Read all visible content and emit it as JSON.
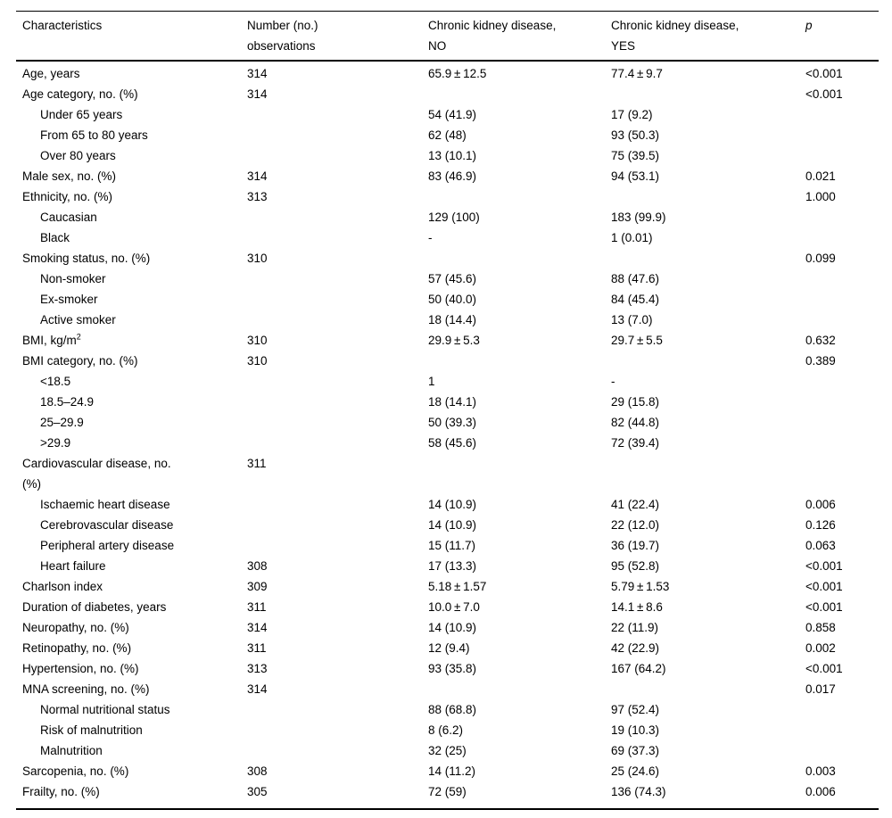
{
  "page": {
    "background_color": "#ffffff",
    "text_color": "#000000",
    "rule_color": "#000000"
  },
  "table": {
    "header": [
      {
        "id": "characteristics",
        "lines": [
          "Characteristics"
        ],
        "italic": false
      },
      {
        "id": "observations",
        "lines": [
          "Number (no.)",
          "observations"
        ],
        "italic": false
      },
      {
        "id": "ckd-no",
        "lines": [
          "Chronic kidney disease,",
          "NO"
        ],
        "italic": false
      },
      {
        "id": "ckd-yes",
        "lines": [
          "Chronic kidney disease,",
          "YES"
        ],
        "italic": false
      },
      {
        "id": "p-value",
        "lines": [
          "p"
        ],
        "italic": true
      }
    ],
    "rows": [
      {
        "label": "Age, years",
        "indent": false,
        "obs": "314",
        "ckd_no": "65.9 ± 12.5",
        "ckd_yes": "77.4 ± 9.7",
        "p": "<0.001"
      },
      {
        "label": "Age category, no. (%)",
        "indent": false,
        "obs": "314",
        "ckd_no": "",
        "ckd_yes": "",
        "p": "<0.001"
      },
      {
        "label": "Under 65 years",
        "indent": true,
        "obs": "",
        "ckd_no": "54 (41.9)",
        "ckd_yes": "17 (9.2)",
        "p": ""
      },
      {
        "label": "From 65 to 80 years",
        "indent": true,
        "obs": "",
        "ckd_no": "62 (48)",
        "ckd_yes": "93 (50.3)",
        "p": ""
      },
      {
        "label": "Over 80 years",
        "indent": true,
        "obs": "",
        "ckd_no": "13 (10.1)",
        "ckd_yes": "75 (39.5)",
        "p": ""
      },
      {
        "label": "Male sex, no. (%)",
        "indent": false,
        "obs": "314",
        "ckd_no": "83 (46.9)",
        "ckd_yes": "94 (53.1)",
        "p": "0.021"
      },
      {
        "label": "Ethnicity, no. (%)",
        "indent": false,
        "obs": "313",
        "ckd_no": "",
        "ckd_yes": "",
        "p": "1.000"
      },
      {
        "label": "Caucasian",
        "indent": true,
        "obs": "",
        "ckd_no": "129 (100)",
        "ckd_yes": "183 (99.9)",
        "p": ""
      },
      {
        "label": "Black",
        "indent": true,
        "obs": "",
        "ckd_no": "-",
        "ckd_yes": "1 (0.01)",
        "p": ""
      },
      {
        "label": "Smoking status, no. (%)",
        "indent": false,
        "obs": "310",
        "ckd_no": "",
        "ckd_yes": "",
        "p": "0.099"
      },
      {
        "label": "Non-smoker",
        "indent": true,
        "obs": "",
        "ckd_no": "57 (45.6)",
        "ckd_yes": "88 (47.6)",
        "p": ""
      },
      {
        "label": "Ex-smoker",
        "indent": true,
        "obs": "",
        "ckd_no": "50 (40.0)",
        "ckd_yes": "84 (45.4)",
        "p": ""
      },
      {
        "label": "Active smoker",
        "indent": true,
        "obs": "",
        "ckd_no": "18 (14.4)",
        "ckd_yes": "13 (7.0)",
        "p": ""
      },
      {
        "label": "BMI, kg/m",
        "label_sup": "2",
        "indent": false,
        "obs": "310",
        "ckd_no": "29.9 ± 5.3",
        "ckd_yes": "29.7 ± 5.5",
        "p": "0.632"
      },
      {
        "label": "BMI category, no. (%)",
        "indent": false,
        "obs": "310",
        "ckd_no": "",
        "ckd_yes": "",
        "p": "0.389"
      },
      {
        "label": "<18.5",
        "indent": true,
        "obs": "",
        "ckd_no": "1",
        "ckd_yes": "-",
        "p": ""
      },
      {
        "label": "18.5–24.9",
        "indent": true,
        "obs": "",
        "ckd_no": "18 (14.1)",
        "ckd_yes": "29 (15.8)",
        "p": ""
      },
      {
        "label": "25–29.9",
        "indent": true,
        "obs": "",
        "ckd_no": "50 (39.3)",
        "ckd_yes": "82 (44.8)",
        "p": ""
      },
      {
        "label": ">29.9",
        "indent": true,
        "obs": "",
        "ckd_no": "58 (45.6)",
        "ckd_yes": "72 (39.4)",
        "p": ""
      },
      {
        "label_lines": [
          "Cardiovascular disease, no.",
          "(%)"
        ],
        "indent": false,
        "obs": "311",
        "ckd_no": "",
        "ckd_yes": "",
        "p": ""
      },
      {
        "label": "Ischaemic heart disease",
        "indent": true,
        "obs": "",
        "ckd_no": "14 (10.9)",
        "ckd_yes": "41 (22.4)",
        "p": "0.006"
      },
      {
        "label": "Cerebrovascular disease",
        "indent": true,
        "obs": "",
        "ckd_no": "14 (10.9)",
        "ckd_yes": "22 (12.0)",
        "p": "0.126"
      },
      {
        "label": "Peripheral artery disease",
        "indent": true,
        "obs": "",
        "ckd_no": "15 (11.7)",
        "ckd_yes": "36 (19.7)",
        "p": "0.063"
      },
      {
        "label": "Heart failure",
        "indent": true,
        "obs": "308",
        "ckd_no": "17 (13.3)",
        "ckd_yes": "95 (52.8)",
        "p": "<0.001"
      },
      {
        "label": "Charlson index",
        "indent": false,
        "obs": "309",
        "ckd_no": "5.18 ± 1.57",
        "ckd_yes": "5.79 ± 1.53",
        "p": "<0.001"
      },
      {
        "label": "Duration of diabetes, years",
        "indent": false,
        "obs": "311",
        "ckd_no": "10.0 ± 7.0",
        "ckd_yes": "14.1 ± 8.6",
        "p": "<0.001"
      },
      {
        "label": "Neuropathy, no. (%)",
        "indent": false,
        "obs": "314",
        "ckd_no": "14 (10.9)",
        "ckd_yes": "22 (11.9)",
        "p": "0.858"
      },
      {
        "label": "Retinopathy, no. (%)",
        "indent": false,
        "obs": "311",
        "ckd_no": "12 (9.4)",
        "ckd_yes": "42 (22.9)",
        "p": "0.002"
      },
      {
        "label": "Hypertension, no. (%)",
        "indent": false,
        "obs": "313",
        "ckd_no": "93 (35.8)",
        "ckd_yes": "167 (64.2)",
        "p": "<0.001"
      },
      {
        "label": "MNA screening, no. (%)",
        "indent": false,
        "obs": "314",
        "ckd_no": "",
        "ckd_yes": "",
        "p": "0.017"
      },
      {
        "label": "Normal nutritional status",
        "indent": true,
        "obs": "",
        "ckd_no": "88 (68.8)",
        "ckd_yes": "97 (52.4)",
        "p": ""
      },
      {
        "label": "Risk of malnutrition",
        "indent": true,
        "obs": "",
        "ckd_no": "8 (6.2)",
        "ckd_yes": "19 (10.3)",
        "p": ""
      },
      {
        "label": "Malnutrition",
        "indent": true,
        "obs": "",
        "ckd_no": "32 (25)",
        "ckd_yes": "69 (37.3)",
        "p": ""
      },
      {
        "label": "Sarcopenia, no. (%)",
        "indent": false,
        "obs": "308",
        "ckd_no": "14 (11.2)",
        "ckd_yes": "25 (24.6)",
        "p": "0.003"
      },
      {
        "label": "Frailty, no. (%)",
        "indent": false,
        "obs": "305",
        "ckd_no": "72 (59)",
        "ckd_yes": "136 (74.3)",
        "p": "0.006"
      }
    ]
  }
}
